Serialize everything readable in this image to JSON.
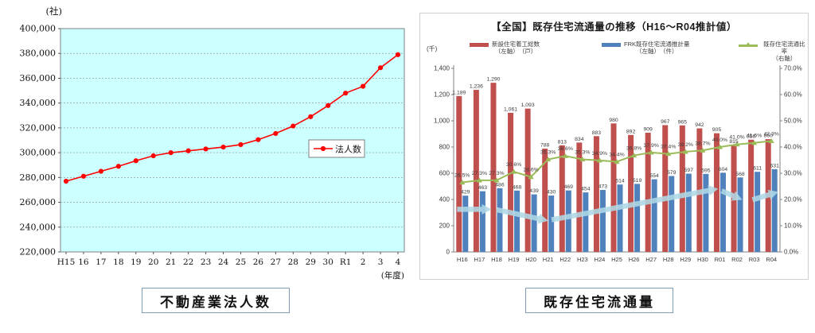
{
  "captions": {
    "left": "不動産業法人数",
    "right": "既存住宅流通量"
  },
  "chart_data": [
    {
      "type": "line",
      "name": "real-estate-corporation-count",
      "unit_top": "(社)",
      "axis_note": "(年度)",
      "categories": [
        "H15",
        "16",
        "17",
        "18",
        "19",
        "20",
        "21",
        "22",
        "23",
        "24",
        "25",
        "26",
        "27",
        "28",
        "29",
        "30",
        "R1",
        "2",
        "3",
        "4"
      ],
      "series": [
        {
          "name": "法人数",
          "color": "#FF0000",
          "values": [
            277000,
            281000,
            285000,
            289000,
            293500,
            297500,
            300000,
            301500,
            303000,
            304500,
            306500,
            310500,
            315500,
            321500,
            329000,
            338000,
            348000,
            353500,
            368500,
            379000
          ]
        }
      ],
      "ylim": [
        220000,
        400000
      ],
      "ytick_labels": [
        "220,000",
        "240,000",
        "260,000",
        "280,000",
        "300,000",
        "320,000",
        "340,000",
        "360,000",
        "380,000",
        "400,000"
      ],
      "plot_bg": "#CCFFFF",
      "grid": true,
      "legend": {
        "label": "法人数",
        "position": "inside-right"
      }
    },
    {
      "type": "combo-bar-line",
      "name": "existing-home-distribution",
      "title": "【全国】既存住宅流通量の推移（H16～R04推計値）",
      "unit_left": "(千)",
      "categories": [
        "H16",
        "H17",
        "H18",
        "H19",
        "H20",
        "H21",
        "H22",
        "H23",
        "H24",
        "H25",
        "H26",
        "H27",
        "H28",
        "H29",
        "H30",
        "R01",
        "R02",
        "R03",
        "R04"
      ],
      "bar_series": [
        {
          "name": "新設住宅着工総数",
          "sub": "（左軸）　（戸）",
          "color": "#C0504D",
          "values": [
            1189,
            1236,
            1290,
            1061,
            1093,
            788,
            813,
            834,
            883,
            980,
            892,
            909,
            967,
            965,
            942,
            905,
            815,
            856,
            860
          ]
        },
        {
          "name": "FRK既存住宅流通推計量",
          "sub": "（左軸）　（件）",
          "color": "#4F81BD",
          "values": [
            429,
            463,
            486,
            468,
            439,
            430,
            469,
            454,
            473,
            514,
            519,
            554,
            579,
            597,
            595,
            604,
            568,
            611,
            631
          ]
        }
      ],
      "line_series": {
        "name": "既存住宅流通比率",
        "sub": "（右軸）",
        "color": "#9BBB59",
        "values_pct": [
          26.5,
          27.3,
          27.3,
          30.6,
          28.6,
          35.3,
          36.6,
          35.3,
          34.9,
          34.4,
          36.8,
          37.9,
          37.4,
          38.2,
          38.7,
          40.0,
          41.0,
          41.6,
          42.3
        ]
      },
      "ylim_left": [
        0,
        1400
      ],
      "ytick_left_labels": [
        "0",
        "200",
        "400",
        "600",
        "800",
        "1,000",
        "1,200",
        "1,400"
      ],
      "ylim_right_pct": [
        0,
        70
      ],
      "ytick_right_labels": [
        "0.0%",
        "10.0%",
        "20.0%",
        "30.0%",
        "40.0%",
        "50.0%",
        "60.0%",
        "70.0%"
      ],
      "grid": false,
      "legend_position": "top",
      "trend_arrows": {
        "color": "#AFD9E6",
        "segments": [
          [
            -0.3,
            325,
            1.7,
            325
          ],
          [
            2.0,
            322,
            5.0,
            238
          ],
          [
            5.2,
            245,
            14.9,
            482
          ],
          [
            15.1,
            466,
            16.3,
            398
          ],
          [
            16.9,
            398,
            18.4,
            458
          ]
        ]
      }
    }
  ]
}
